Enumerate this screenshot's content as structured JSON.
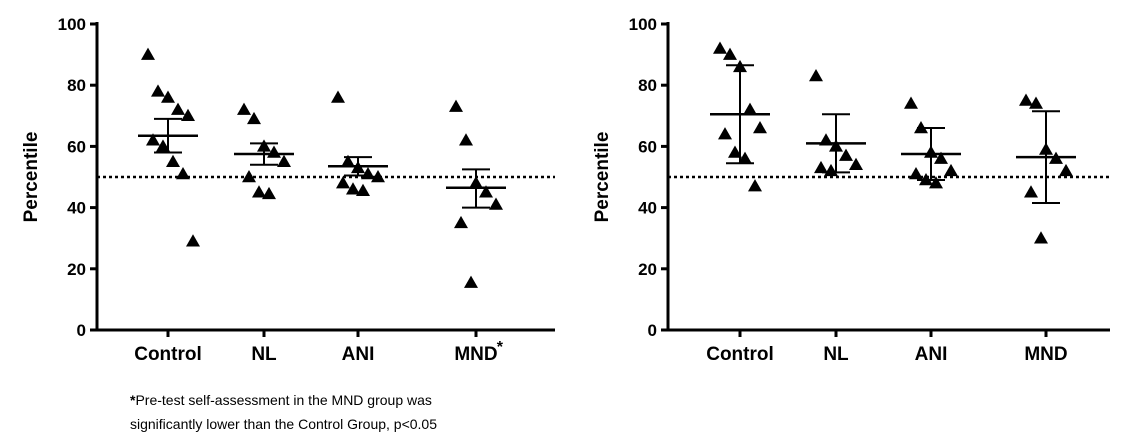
{
  "footnote": {
    "star": "*",
    "line1": "Pre-test self-assessment in the MND group was",
    "line2": "significantly lower than the Control Group, p<0.05"
  },
  "chart_data": [
    {
      "type": "scatter",
      "ylabel": "Percentile",
      "ylim": [
        0,
        100
      ],
      "yticks": [
        0,
        20,
        40,
        60,
        80,
        100
      ],
      "reference_line": 50,
      "categories": [
        "Control",
        "NL",
        "ANI",
        "MND"
      ],
      "category_marks": [
        "",
        "",
        "",
        "*"
      ],
      "groups": [
        {
          "name": "Control",
          "points": [
            90,
            78,
            76,
            72,
            70,
            62,
            60,
            55,
            51,
            29
          ],
          "mean": 63.5,
          "upper": 69,
          "lower": 58
        },
        {
          "name": "NL",
          "points": [
            72,
            69,
            60,
            58,
            55,
            50,
            45,
            44.5
          ],
          "mean": 57.5,
          "upper": 61,
          "lower": 54
        },
        {
          "name": "ANI",
          "points": [
            76,
            55,
            53,
            51,
            50,
            48,
            46,
            45.5
          ],
          "mean": 53.5,
          "upper": 56.5,
          "lower": 50.5
        },
        {
          "name": "MND",
          "points": [
            73,
            62,
            48,
            45,
            41,
            35,
            15.5
          ],
          "mean": 46.5,
          "upper": 52.5,
          "lower": 40
        }
      ]
    },
    {
      "type": "scatter",
      "ylabel": "Percentile",
      "ylim": [
        0,
        100
      ],
      "yticks": [
        0,
        20,
        40,
        60,
        80,
        100
      ],
      "reference_line": 50,
      "categories": [
        "Control",
        "NL",
        "ANI",
        "MND"
      ],
      "category_marks": [
        "",
        "",
        "",
        ""
      ],
      "groups": [
        {
          "name": "Control",
          "points": [
            92,
            90,
            86,
            72,
            66,
            64,
            58,
            56,
            47
          ],
          "mean": 70.5,
          "upper": 86.5,
          "lower": 54.5
        },
        {
          "name": "NL",
          "points": [
            83,
            62,
            60,
            57,
            54,
            53,
            52
          ],
          "mean": 61,
          "upper": 70.5,
          "lower": 51.5
        },
        {
          "name": "ANI",
          "points": [
            74,
            66,
            58,
            56,
            52,
            51,
            49,
            48
          ],
          "mean": 57.5,
          "upper": 66,
          "lower": 49
        },
        {
          "name": "MND",
          "points": [
            75,
            74,
            59,
            56,
            52,
            45,
            30
          ],
          "mean": 56.5,
          "upper": 71.5,
          "lower": 41.5
        }
      ]
    }
  ]
}
